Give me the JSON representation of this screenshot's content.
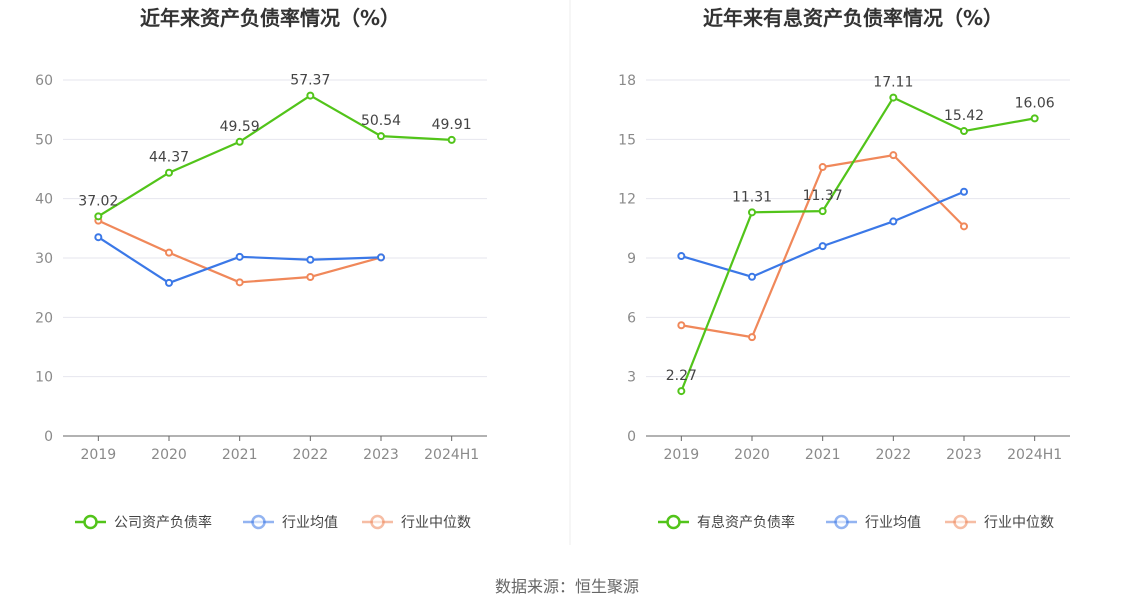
{
  "colors": {
    "company": "#52c41a",
    "industry_avg": "#3b78e7",
    "industry_median": "#f0885a",
    "grid": "#e6e6ee",
    "axis": "#666666"
  },
  "chart_data": [
    {
      "type": "line",
      "title": "近年来资产负债率情况（%）",
      "categories": [
        "2019",
        "2020",
        "2021",
        "2022",
        "2023",
        "2024H1"
      ],
      "ylim": [
        0,
        60
      ],
      "yticks": [
        "0",
        "10",
        "20",
        "30",
        "40",
        "50",
        "60"
      ],
      "series": [
        {
          "name": "公司资产负债率",
          "color_key": "company",
          "values": [
            37.02,
            44.37,
            49.59,
            57.37,
            50.54,
            49.91
          ],
          "labels": [
            "37.02",
            "44.37",
            "49.59",
            "57.37",
            "50.54",
            "49.91"
          ]
        },
        {
          "name": "行业均值",
          "color_key": "industry_avg",
          "values": [
            33.5,
            25.8,
            30.2,
            29.7,
            30.1,
            null
          ],
          "labels": null
        },
        {
          "name": "行业中位数",
          "color_key": "industry_median",
          "values": [
            36.3,
            30.9,
            25.9,
            26.8,
            30.1,
            null
          ],
          "labels": null
        }
      ]
    },
    {
      "type": "line",
      "title": "近年来有息资产负债率情况（%）",
      "categories": [
        "2019",
        "2020",
        "2021",
        "2022",
        "2023",
        "2024H1"
      ],
      "ylim": [
        0,
        18
      ],
      "yticks": [
        "0",
        "3",
        "6",
        "9",
        "12",
        "15",
        "18"
      ],
      "series": [
        {
          "name": "有息资产负债率",
          "color_key": "company",
          "values": [
            2.27,
            11.31,
            11.37,
            17.11,
            15.42,
            16.06
          ],
          "labels": [
            "2.27",
            "11.31",
            "11.37",
            "17.11",
            "15.42",
            "16.06"
          ]
        },
        {
          "name": "行业均值",
          "color_key": "industry_avg",
          "values": [
            9.1,
            8.05,
            9.6,
            10.85,
            12.35,
            null
          ],
          "labels": null
        },
        {
          "name": "行业中位数",
          "color_key": "industry_median",
          "values": [
            5.6,
            5.0,
            13.6,
            14.2,
            10.6,
            null
          ],
          "labels": null
        }
      ]
    }
  ],
  "footer": {
    "source": "数据来源：恒生聚源"
  }
}
